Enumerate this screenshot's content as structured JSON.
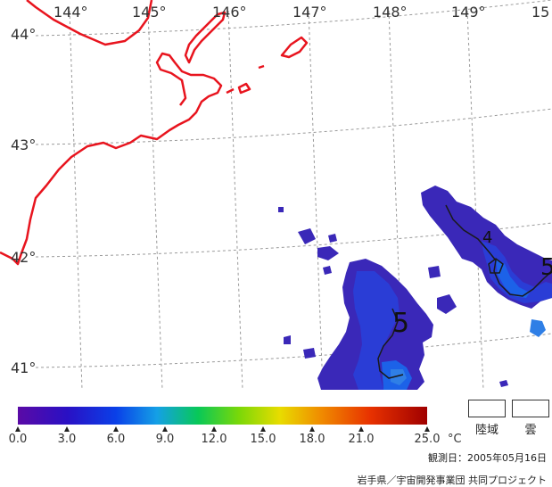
{
  "longitude_labels": [
    "144°",
    "145°",
    "146°",
    "147°",
    "148°",
    "149°",
    "15"
  ],
  "latitude_labels": [
    "44°",
    "43°",
    "42°",
    "41°"
  ],
  "colorbar": {
    "ticks": [
      "0.0",
      "3.0",
      "6.0",
      "9.0",
      "12.0",
      "15.0",
      "18.0",
      "21.0",
      "25.0"
    ],
    "unit": "°C",
    "min": 0,
    "max": 25
  },
  "contour_labels": [
    "5",
    "4",
    "5"
  ],
  "legend": {
    "land_label": "陸域",
    "cloud_label": "雲"
  },
  "footer": {
    "observation_date": "観測日：2005年05月16日",
    "credit": "岩手県／宇宙開発事業団 共同プロジェクト"
  },
  "colors": {
    "coast": "#e8141e",
    "grid": "#9a9a9a",
    "contour": "#1a1a1a"
  }
}
